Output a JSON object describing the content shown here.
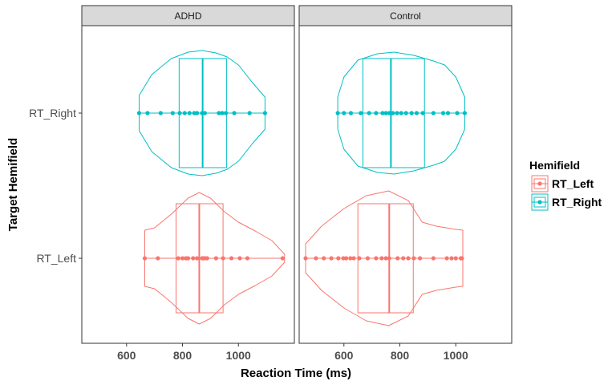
{
  "chart_data": {
    "type": "violin",
    "xlabel": "Reaction Time (ms)",
    "ylabel": "Target Hemifield",
    "x_ticks": [
      600,
      800,
      1000
    ],
    "xlim": [
      440,
      1200
    ],
    "categories": [
      "RT_Left",
      "RT_Right"
    ],
    "legend": {
      "title": "Hemifield",
      "position": "right",
      "entries": [
        "RT_Left",
        "RT_Right"
      ]
    },
    "colors": {
      "RT_Left": "#F8766D",
      "RT_Right": "#00BFC4"
    },
    "panels": [
      {
        "label": "ADHD",
        "groups": [
          {
            "name": "RT_Left",
            "points": [
              665,
              712,
              785,
              800,
              812,
              820,
              838,
              852,
              870,
              875,
              880,
              888,
              920,
              945,
              975,
              1005,
              1032,
              1158
            ],
            "box": {
              "q1": 777,
              "median": 860,
              "q3": 945
            },
            "density": [
              [
                665,
                0.35
              ],
              [
                700,
                0.38
              ],
              [
                760,
                0.55
              ],
              [
                820,
                0.75
              ],
              [
                860,
                0.82
              ],
              [
                900,
                0.75
              ],
              [
                950,
                0.58
              ],
              [
                1000,
                0.45
              ],
              [
                1060,
                0.34
              ],
              [
                1120,
                0.22
              ],
              [
                1165,
                0.05
              ]
            ]
          },
          {
            "name": "RT_Right",
            "points": [
              645,
              675,
              722,
              765,
              790,
              808,
              825,
              842,
              852,
              870,
              880,
              930,
              942,
              955,
              985,
              1040,
              1095
            ],
            "box": {
              "q1": 788,
              "median": 872,
              "q3": 958
            },
            "density": [
              [
                645,
                0.22
              ],
              [
                690,
                0.48
              ],
              [
                760,
                0.68
              ],
              [
                820,
                0.76
              ],
              [
                870,
                0.78
              ],
              [
                920,
                0.75
              ],
              [
                960,
                0.7
              ],
              [
                1000,
                0.6
              ],
              [
                1050,
                0.38
              ],
              [
                1095,
                0.2
              ]
            ]
          }
        ]
      },
      {
        "label": "Control",
        "groups": [
          {
            "name": "RT_Left",
            "points": [
              463,
              500,
              528,
              555,
              580,
              598,
              608,
              623,
              635,
              655,
              685,
              715,
              735,
              750,
              762,
              792,
              812,
              830,
              850,
              872,
              920,
              968,
              985,
              1000,
              1018,
              1022
            ],
            "box": {
              "q1": 650,
              "median": 762,
              "q3": 848
            },
            "density": [
              [
                463,
                0.18
              ],
              [
                520,
                0.4
              ],
              [
                600,
                0.62
              ],
              [
                680,
                0.78
              ],
              [
                760,
                0.84
              ],
              [
                830,
                0.72
              ],
              [
                880,
                0.45
              ],
              [
                930,
                0.4
              ],
              [
                1000,
                0.36
              ],
              [
                1025,
                0.35
              ]
            ]
          },
          {
            "name": "RT_Right",
            "points": [
              578,
              600,
              625,
              660,
              690,
              715,
              738,
              750,
              762,
              775,
              790,
              805,
              822,
              842,
              860,
              882,
              920,
              955,
              972,
              1005,
              1032
            ],
            "box": {
              "q1": 668,
              "median": 768,
              "q3": 888
            },
            "density": [
              [
                578,
                0.2
              ],
              [
                600,
                0.45
              ],
              [
                650,
                0.66
              ],
              [
                720,
                0.74
              ],
              [
                780,
                0.76
              ],
              [
                850,
                0.72
              ],
              [
                920,
                0.65
              ],
              [
                960,
                0.6
              ],
              [
                1000,
                0.45
              ],
              [
                1032,
                0.2
              ]
            ]
          }
        ]
      }
    ]
  }
}
